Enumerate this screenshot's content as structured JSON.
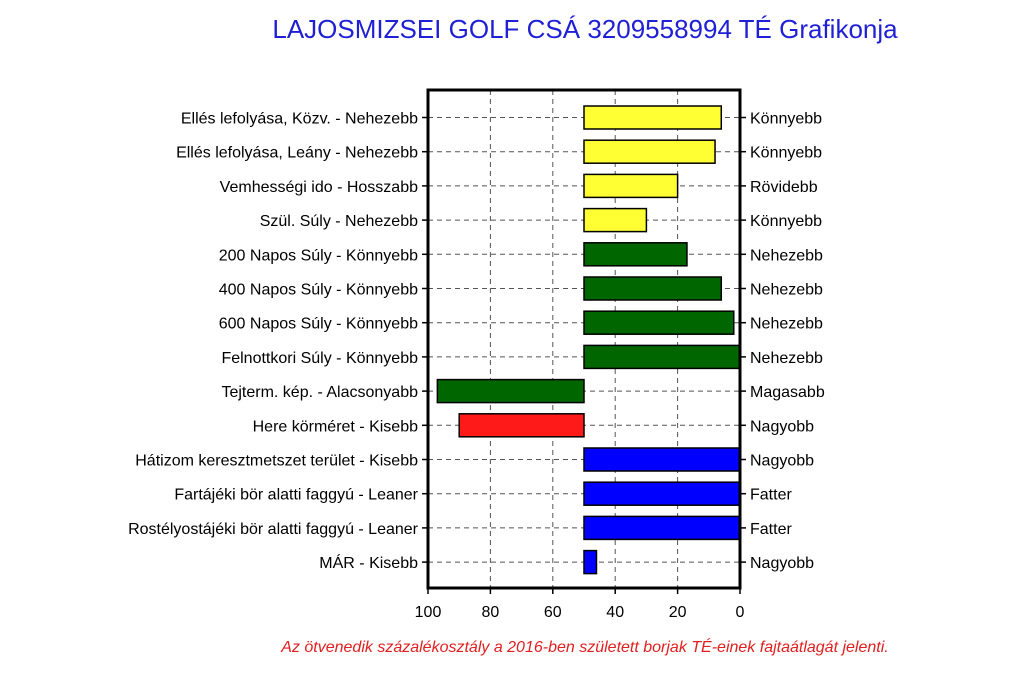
{
  "chart_data": {
    "type": "bar",
    "title": "LAJOSMIZSEI GOLF CSÁ 3209558994 TÉ Grafikonja",
    "footnote": "Az ötvenedik százalékosztály  a 2016-ben született borjak TÉ-einek fajtaátlagát jelenti.",
    "xlim": [
      100,
      0
    ],
    "baseline": 50,
    "x_ticks": [
      "100",
      "80",
      "60",
      "40",
      "20",
      "0"
    ],
    "grid": true,
    "colors": {
      "yellow": "#ffff33",
      "green": "#006600",
      "red": "#ff1a1a",
      "blue": "#0000ff"
    },
    "rows": [
      {
        "left_label": "Ellés lefolyása, Közv. - Nehezebb",
        "right_label": "Könnyebb",
        "value": 6,
        "color": "yellow"
      },
      {
        "left_label": "Ellés lefolyása, Leány - Nehezebb",
        "right_label": "Könnyebb",
        "value": 8,
        "color": "yellow"
      },
      {
        "left_label": "Vemhességi ido - Hosszabb",
        "right_label": "Rövidebb",
        "value": 20,
        "color": "yellow"
      },
      {
        "left_label": "Szül. Súly - Nehezebb",
        "right_label": "Könnyebb",
        "value": 30,
        "color": "yellow"
      },
      {
        "left_label": "200 Napos Súly - Könnyebb",
        "right_label": "Nehezebb",
        "value": 17,
        "color": "green"
      },
      {
        "left_label": "400 Napos Súly - Könnyebb",
        "right_label": "Nehezebb",
        "value": 6,
        "color": "green"
      },
      {
        "left_label": "600 Napos Súly - Könnyebb",
        "right_label": "Nehezebb",
        "value": 2,
        "color": "green"
      },
      {
        "left_label": "Felnottkori Súly - Könnyebb",
        "right_label": "Nehezebb",
        "value": 0,
        "color": "green"
      },
      {
        "left_label": "Tejterm. kép. - Alacsonyabb",
        "right_label": "Magasabb",
        "value": 97,
        "color": "green"
      },
      {
        "left_label": "Here körméret - Kisebb",
        "right_label": "Nagyobb",
        "value": 90,
        "color": "red"
      },
      {
        "left_label": "Hátizom keresztmetszet terület - Kisebb",
        "right_label": "Nagyobb",
        "value": 0,
        "color": "blue"
      },
      {
        "left_label": "Fartájéki bör alatti faggyú - Leaner",
        "right_label": "Fatter",
        "value": 0,
        "color": "blue"
      },
      {
        "left_label": "Rostélyostájéki bör alatti faggyú - Leaner",
        "right_label": "Fatter",
        "value": 0,
        "color": "blue"
      },
      {
        "left_label": "MÁR - Kisebb",
        "right_label": "Nagyobb",
        "value": 46,
        "color": "blue"
      }
    ]
  }
}
